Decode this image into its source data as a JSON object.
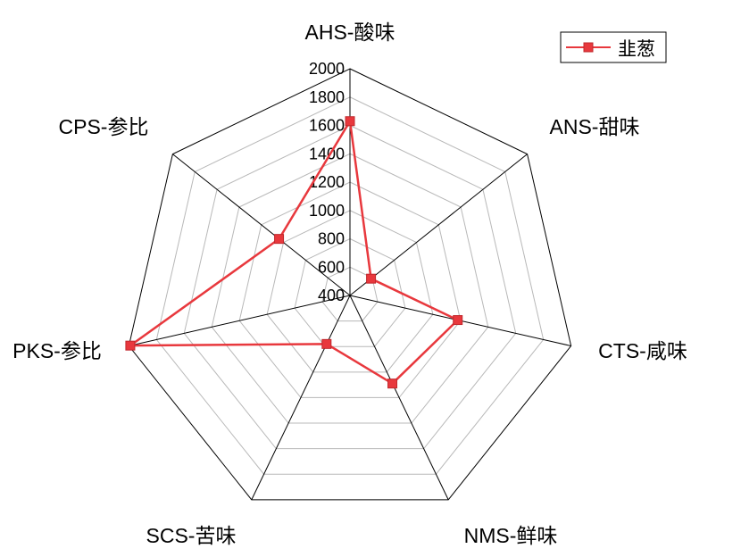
{
  "chart_data": {
    "type": "radar",
    "title": "",
    "axes": [
      "AHS-酸味",
      "ANS-甜味",
      "CTS-咸味",
      "NMS-鲜味",
      "SCS-苦味",
      "PKS-参比",
      "CPS-参比"
    ],
    "ticks": [
      "400",
      "600",
      "800",
      "1000",
      "1200",
      "1400",
      "1600",
      "1800",
      "2000"
    ],
    "rlim": [
      400,
      2000
    ],
    "grid": true,
    "legend_position": "top-right",
    "series": [
      {
        "name": "韭葱",
        "color": "#e8383d",
        "marker": "square",
        "values": [
          1630,
          590,
          1180,
          1090,
          780,
          1990,
          1040
        ]
      }
    ]
  }
}
